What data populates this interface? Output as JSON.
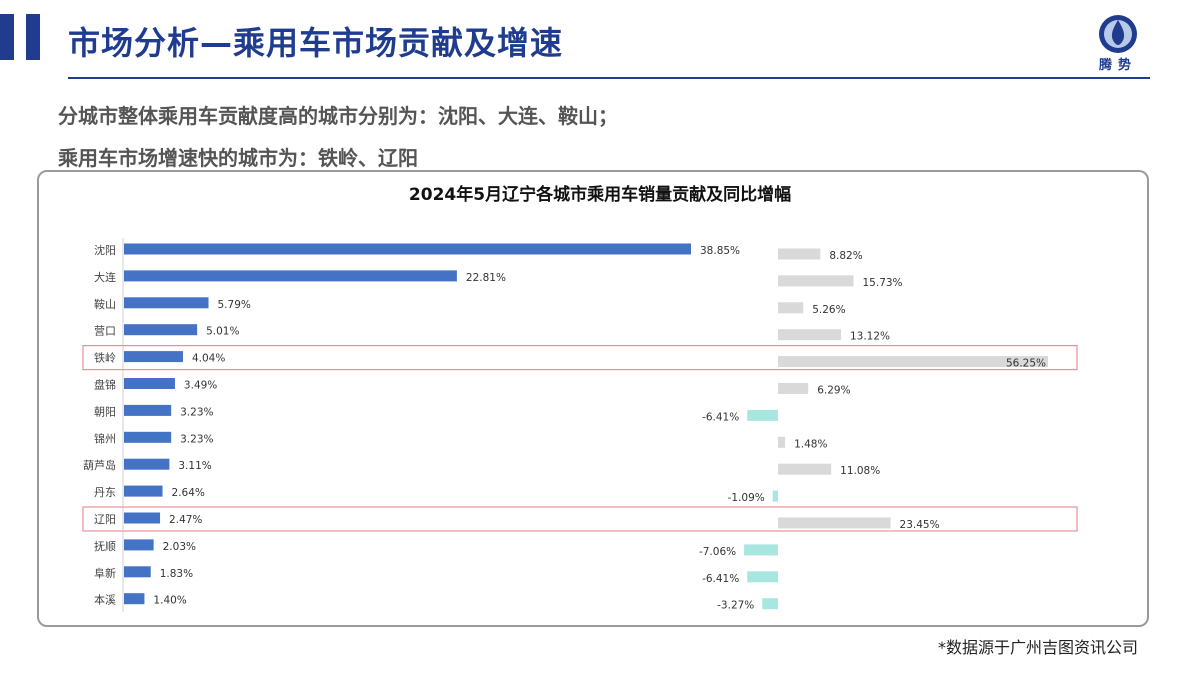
{
  "header": {
    "title": "市场分析—乘用车市场贡献及增速",
    "logo_text": "腾势",
    "accent_color": "#1f3c8f"
  },
  "summary": {
    "line1": "分城市整体乘用车贡献度高的城市分别为：沈阳、大连、鞍山；",
    "line2": "乘用车市场增速快的城市为：铁岭、辽阳"
  },
  "chart_data": {
    "type": "bar",
    "title": "2024年5月辽宁各城市乘用车销量贡献及同比增幅",
    "categories": [
      "沈阳",
      "大连",
      "鞍山",
      "营口",
      "铁岭",
      "盘锦",
      "朝阳",
      "锦州",
      "葫芦岛",
      "丹东",
      "辽阳",
      "抚顺",
      "阜新",
      "本溪"
    ],
    "series": [
      {
        "values": [
          38.85,
          22.81,
          5.79,
          5.01,
          4.04,
          3.49,
          3.23,
          3.23,
          3.11,
          2.64,
          2.47,
          2.03,
          1.83,
          1.4
        ],
        "labels": [
          "38.85%",
          "22.81%",
          "5.79%",
          "5.01%",
          "4.04%",
          "3.49%",
          "3.23%",
          "3.23%",
          "3.11%",
          "2.64%",
          "2.47%",
          "2.03%",
          "1.83%",
          "1.40%"
        ],
        "color": "#4472c4"
      },
      {
        "values": [
          8.82,
          15.73,
          5.26,
          13.12,
          56.25,
          6.29,
          -6.41,
          1.48,
          11.08,
          -1.09,
          23.45,
          -7.06,
          -6.41,
          -3.27
        ],
        "labels": [
          "8.82%",
          "15.73%",
          "5.26%",
          "13.12%",
          "56.25%",
          "6.29%",
          "-6.41%",
          "1.48%",
          "11.08%",
          "-1.09%",
          "23.45%",
          "-7.06%",
          "-6.41%",
          "-3.27%"
        ],
        "color_positive": "#d9d9d9",
        "color_negative": "#a8e6e0"
      }
    ],
    "highlighted_categories": [
      "铁岭",
      "辽阳"
    ],
    "highlight_color": "#e8909a"
  },
  "footer": {
    "source": "*数据源于广州吉图资讯公司"
  }
}
